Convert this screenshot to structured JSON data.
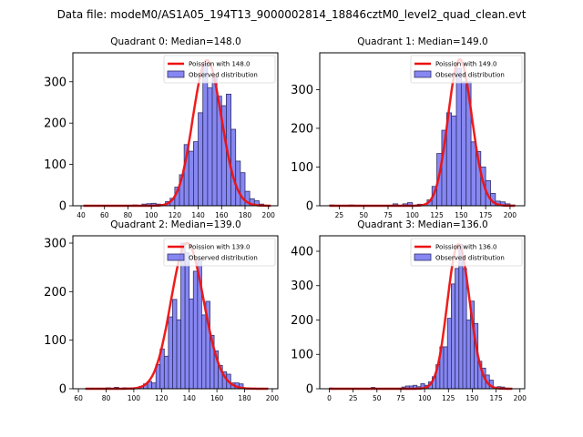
{
  "chart_data": {
    "type": "bar",
    "title": "Data file: modeM0/AS1A05_194T13_9000002814_18846cztM0_level2_quad_clean.evt",
    "colors": {
      "bar_fill": "#7272f0",
      "bar_edge": "#30306a",
      "curve": "#ee1111"
    },
    "subplots": [
      {
        "title": "Quadrant 0: Median=148.0",
        "legend": [
          "Poission with 148.0",
          "Observed distribution"
        ],
        "legend_position": "top-right",
        "xlim": [
          33,
          208
        ],
        "ylim": [
          0,
          370
        ],
        "xticks": [
          40,
          60,
          80,
          100,
          120,
          140,
          160,
          180,
          200
        ],
        "yticks": [
          0,
          100,
          200,
          300
        ],
        "mean": 148.0,
        "peak": 352,
        "curve_x_range": [
          42,
          202
        ],
        "bin_width": 4,
        "bins_start": [
          84,
          92,
          96,
          100,
          104,
          108,
          112,
          116,
          120,
          124,
          128,
          132,
          136,
          140,
          144,
          148,
          152,
          156,
          160,
          164,
          168,
          172,
          176,
          180,
          184,
          188,
          192
        ],
        "counts": [
          2,
          4,
          5,
          6,
          4,
          3,
          10,
          18,
          45,
          75,
          148,
          132,
          155,
          225,
          345,
          285,
          310,
          265,
          242,
          270,
          185,
          108,
          80,
          35,
          17,
          12,
          4
        ]
      },
      {
        "title": "Quadrant 1: Median=149.0",
        "legend": [
          "Poission with 149.0",
          "Observed distribution"
        ],
        "legend_position": "top-right",
        "xlim": [
          5,
          215
        ],
        "ylim": [
          0,
          395
        ],
        "xticks": [
          25,
          50,
          75,
          100,
          125,
          150,
          175,
          200
        ],
        "yticks": [
          0,
          100,
          200,
          300
        ],
        "mean": 149.0,
        "peak": 378,
        "curve_x_range": [
          15,
          205
        ],
        "bin_width": 5,
        "bins_start": [
          15,
          35,
          80,
          90,
          95,
          105,
          115,
          120,
          125,
          130,
          135,
          140,
          145,
          150,
          155,
          160,
          165,
          170,
          175,
          180,
          185,
          190,
          195,
          200
        ],
        "counts": [
          2,
          2,
          5,
          5,
          8,
          4,
          15,
          50,
          135,
          195,
          240,
          232,
          355,
          320,
          320,
          165,
          140,
          100,
          65,
          32,
          12,
          10,
          5,
          2
        ]
      },
      {
        "title": "Quadrant 2: Median=139.0",
        "legend": [
          "Poission with 139.0",
          "Observed distribution"
        ],
        "legend_position": "top-right",
        "xlim": [
          56,
          204
        ],
        "ylim": [
          0,
          315
        ],
        "xticks": [
          60,
          80,
          100,
          120,
          140,
          160,
          180,
          200
        ],
        "yticks": [
          0,
          100,
          200,
          300
        ],
        "mean": 139.0,
        "peak": 300,
        "curve_x_range": [
          65,
          197
        ],
        "bin_width": 3,
        "bins_start": [
          80,
          86,
          92,
          104,
          107,
          110,
          113,
          116,
          119,
          122,
          125,
          128,
          131,
          134,
          137,
          140,
          143,
          146,
          149,
          152,
          155,
          158,
          161,
          164,
          167,
          170,
          173,
          176
        ],
        "counts": [
          2,
          3,
          2,
          5,
          10,
          15,
          12,
          50,
          82,
          67,
          148,
          184,
          142,
          300,
          280,
          185,
          242,
          265,
          152,
          180,
          110,
          78,
          48,
          35,
          30,
          12,
          12,
          10
        ]
      },
      {
        "title": "Quadrant 3: Median=136.0",
        "legend": [
          "Poission with 136.0",
          "Observed distribution"
        ],
        "legend_position": "top-right",
        "xlim": [
          -10,
          205
        ],
        "ylim": [
          0,
          445
        ],
        "xticks": [
          0,
          25,
          50,
          75,
          100,
          125,
          150,
          175,
          200
        ],
        "yticks": [
          0,
          100,
          200,
          300,
          400
        ],
        "mean": 136.0,
        "peak": 420,
        "curve_x_range": [
          0,
          192
        ],
        "bin_width": 4,
        "bins_start": [
          0,
          44,
          76,
          80,
          84,
          88,
          92,
          96,
          100,
          104,
          108,
          112,
          116,
          120,
          124,
          128,
          132,
          136,
          140,
          144,
          148,
          152,
          156,
          160,
          164,
          168,
          176,
          180,
          184
        ],
        "counts": [
          2,
          4,
          5,
          8,
          8,
          10,
          6,
          15,
          10,
          20,
          35,
          70,
          122,
          122,
          205,
          305,
          350,
          420,
          350,
          200,
          255,
          190,
          80,
          60,
          40,
          25,
          6,
          5,
          2
        ]
      }
    ]
  }
}
